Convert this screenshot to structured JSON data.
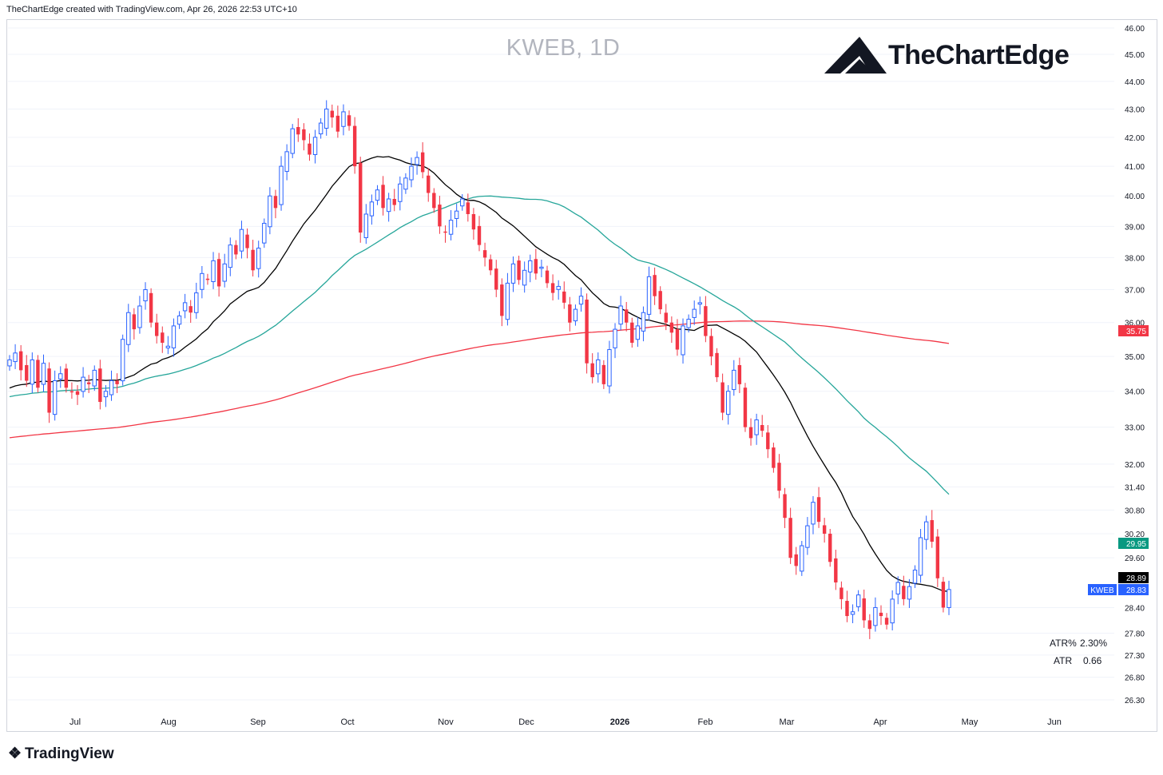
{
  "header": {
    "caption": "TheChartEdge created with TradingView.com, Apr 26, 2026 22:53 UTC+10",
    "title": "KWEB, 1D",
    "brand": "TheChartEdge",
    "footer_logo": "TradingView"
  },
  "indicators": {
    "atr_pct_label": "ATR%",
    "atr_pct_value": "2.30%",
    "atr_label": "ATR",
    "atr_value": "0.66"
  },
  "colors": {
    "up": "#2962ff",
    "down": "#f23645",
    "ma_short": "#000000",
    "ma_mid": "#26a69a",
    "ma_long": "#f23645",
    "grid": "#f0f3fa"
  },
  "chart_data": {
    "type": "candlestick",
    "symbol": "KWEB",
    "interval": "1D",
    "y_scale": "log",
    "ylim": [
      26.0,
      46.0
    ],
    "x_ticks": [
      "Jul",
      "Aug",
      "Sep",
      "Oct",
      "Nov",
      "Dec",
      "2026",
      "Feb",
      "Mar",
      "Apr",
      "May",
      "Jun"
    ],
    "y_ticks": [
      "46.00",
      "45.00",
      "44.00",
      "43.00",
      "42.00",
      "41.00",
      "40.00",
      "39.00",
      "38.00",
      "37.00",
      "36.00",
      "35.00",
      "34.00",
      "33.00",
      "32.00",
      "31.40",
      "30.80",
      "30.20",
      "29.60",
      "28.40",
      "27.80",
      "27.30",
      "26.80",
      "26.30"
    ],
    "price_tags": [
      {
        "label": "",
        "value": "35.75",
        "color": "#f23645"
      },
      {
        "label": "",
        "value": "29.95",
        "color": "#089981"
      },
      {
        "label": "",
        "value": "28.89",
        "color": "#000000"
      },
      {
        "label": "KWEB",
        "value": "28.83",
        "color": "#2962ff"
      }
    ],
    "candle_closes": [
      34.9,
      35.1,
      34.6,
      34.3,
      34.9,
      34.1,
      34.8,
      33.4,
      34.3,
      34.5,
      34.1,
      34.0,
      33.9,
      34.4,
      34.2,
      34.6,
      33.7,
      34.0,
      34.3,
      34.2,
      35.5,
      36.3,
      35.8,
      36.5,
      37.0,
      36.0,
      35.6,
      35.4,
      35.3,
      35.9,
      36.2,
      36.6,
      36.3,
      36.9,
      37.5,
      37.3,
      37.9,
      37.1,
      37.8,
      38.4,
      38.1,
      38.9,
      38.3,
      37.6,
      38.3,
      39.1,
      40.0,
      39.6,
      41.0,
      41.5,
      42.3,
      42.1,
      41.9,
      41.4,
      42.0,
      42.5,
      43.0,
      42.7,
      42.2,
      42.9,
      42.4,
      41.0,
      38.8,
      39.4,
      39.8,
      40.2,
      39.6,
      39.9,
      39.7,
      40.4,
      40.6,
      41.0,
      41.3,
      40.8,
      40.1,
      39.6,
      39.0,
      38.8,
      39.2,
      39.5,
      39.9,
      39.4,
      38.9,
      38.4,
      38.0,
      37.6,
      37.0,
      36.2,
      37.2,
      37.8,
      37.3,
      37.6,
      37.9,
      37.5,
      37.7,
      37.2,
      36.9,
      37.1,
      36.6,
      36.0,
      36.4,
      36.8,
      34.8,
      34.4,
      34.9,
      34.2,
      35.2,
      35.8,
      36.5,
      36.0,
      35.4,
      35.9,
      36.3,
      37.4,
      36.8,
      36.4,
      36.0,
      35.7,
      35.2,
      35.9,
      36.1,
      36.4,
      36.6,
      35.6,
      35.0,
      34.4,
      33.4,
      34.0,
      34.6,
      34.2,
      33.0,
      32.7,
      33.2,
      32.9,
      32.4,
      31.9,
      31.3,
      30.6,
      29.6,
      29.4,
      29.9,
      30.4,
      31.0,
      30.5,
      30.2,
      29.5,
      29.0,
      28.6,
      28.2,
      28.3,
      28.7,
      28.1,
      27.9,
      28.4,
      28.2,
      28.0,
      28.6,
      29.0,
      28.6,
      28.9,
      29.3,
      30.1,
      30.5,
      30.0,
      29.1,
      28.4,
      28.83
    ],
    "sma_20_end": 28.89,
    "sma_50_end": 29.95,
    "sma_200_end": 35.75
  }
}
